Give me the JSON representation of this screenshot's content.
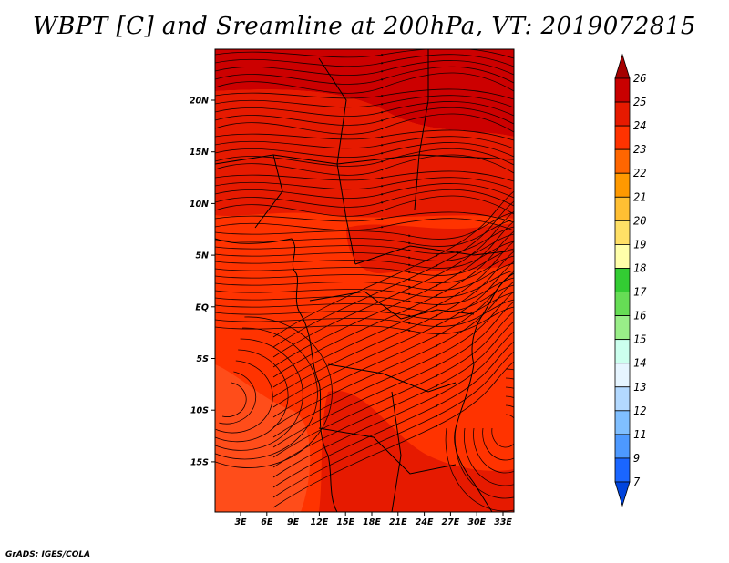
{
  "title": "WBPT [C] and Sreamline at 200hPa, VT: 2019072815",
  "credit": "GrADS: IGES/COLA",
  "map": {
    "lon_labels": [
      "3E",
      "6E",
      "9E",
      "12E",
      "15E",
      "18E",
      "21E",
      "24E",
      "27E",
      "30E",
      "33E"
    ],
    "lat_labels": [
      "20N",
      "15N",
      "10N",
      "5N",
      "EQ",
      "5S",
      "10S",
      "15S"
    ],
    "fill_colors": {
      "base": "#ff3300",
      "warm": "#e61a00",
      "hot": "#cc0000",
      "coastal": "#ff4d1a"
    }
  },
  "colorbar": {
    "levels": [
      "26",
      "25",
      "24",
      "23",
      "22",
      "21",
      "20",
      "19",
      "18",
      "17",
      "16",
      "15",
      "14",
      "13",
      "12",
      "11",
      "9",
      "7"
    ],
    "colors": [
      "#a50000",
      "#c80000",
      "#e61a00",
      "#ff3300",
      "#ff6600",
      "#ff9900",
      "#ffbf33",
      "#ffe066",
      "#ffffaa",
      "#33cc33",
      "#66dd55",
      "#99ee88",
      "#ccffee",
      "#e6f5ff",
      "#b3d9ff",
      "#80bfff",
      "#4d99ff",
      "#1a66ff",
      "#0044dd"
    ]
  }
}
